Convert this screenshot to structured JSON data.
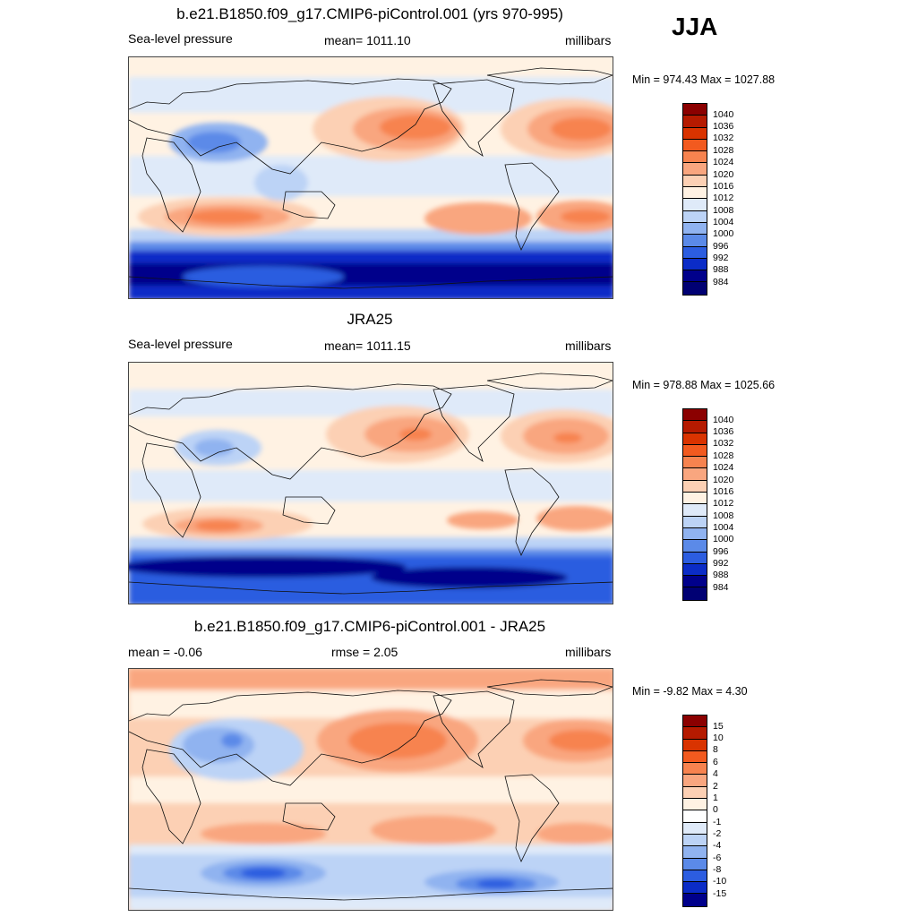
{
  "season": "JJA",
  "panels": [
    {
      "title": "b.e21.B1850.f09_g17.CMIP6-piControl.001 (yrs 970-995)",
      "left": "Sea-level pressure",
      "center": "mean= 1011.10",
      "right": "millibars",
      "minmax": "Min = 974.43 Max = 1027.88",
      "levels": [
        "1040",
        "1036",
        "1032",
        "1028",
        "1024",
        "1020",
        "1016",
        "1012",
        "1008",
        "1004",
        "1000",
        "996",
        "992",
        "988",
        "984"
      ]
    },
    {
      "title": "JRA25",
      "left": "Sea-level pressure",
      "center": "mean= 1011.15",
      "right": "millibars",
      "minmax": "Min = 978.88 Max = 1025.66",
      "levels": [
        "1040",
        "1036",
        "1032",
        "1028",
        "1024",
        "1020",
        "1016",
        "1012",
        "1008",
        "1004",
        "1000",
        "996",
        "992",
        "988",
        "984"
      ]
    },
    {
      "title": "b.e21.B1850.f09_g17.CMIP6-piControl.001 - JRA25",
      "left": "mean =  -0.06",
      "center": "rmse =   2.05",
      "right": "millibars",
      "minmax": "Min =  -9.82 Max =   4.30",
      "levels": [
        "15",
        "10",
        "8",
        "6",
        "4",
        "2",
        "1",
        "0",
        "-1",
        "-2",
        "-4",
        "-6",
        "-8",
        "-10",
        "-15"
      ]
    }
  ],
  "colors": [
    "#8b0000",
    "#b51a00",
    "#d93300",
    "#f25a1f",
    "#f7834f",
    "#f9a67f",
    "#fcd0b4",
    "#fff2e3",
    "#dfeaf9",
    "#bcd3f6",
    "#90b3f0",
    "#5b8ae8",
    "#2c5de0",
    "#0b2cc7",
    "#00008b",
    "#000073"
  ],
  "diff_colors": [
    "#8b0000",
    "#b51a00",
    "#d93300",
    "#f25a1f",
    "#f7834f",
    "#f9a67f",
    "#fcd0b4",
    "#fff2e3",
    "#ffffff",
    "#dfeaf9",
    "#bcd3f6",
    "#90b3f0",
    "#5b8ae8",
    "#2c5de0",
    "#0b2cc7",
    "#00008b"
  ]
}
